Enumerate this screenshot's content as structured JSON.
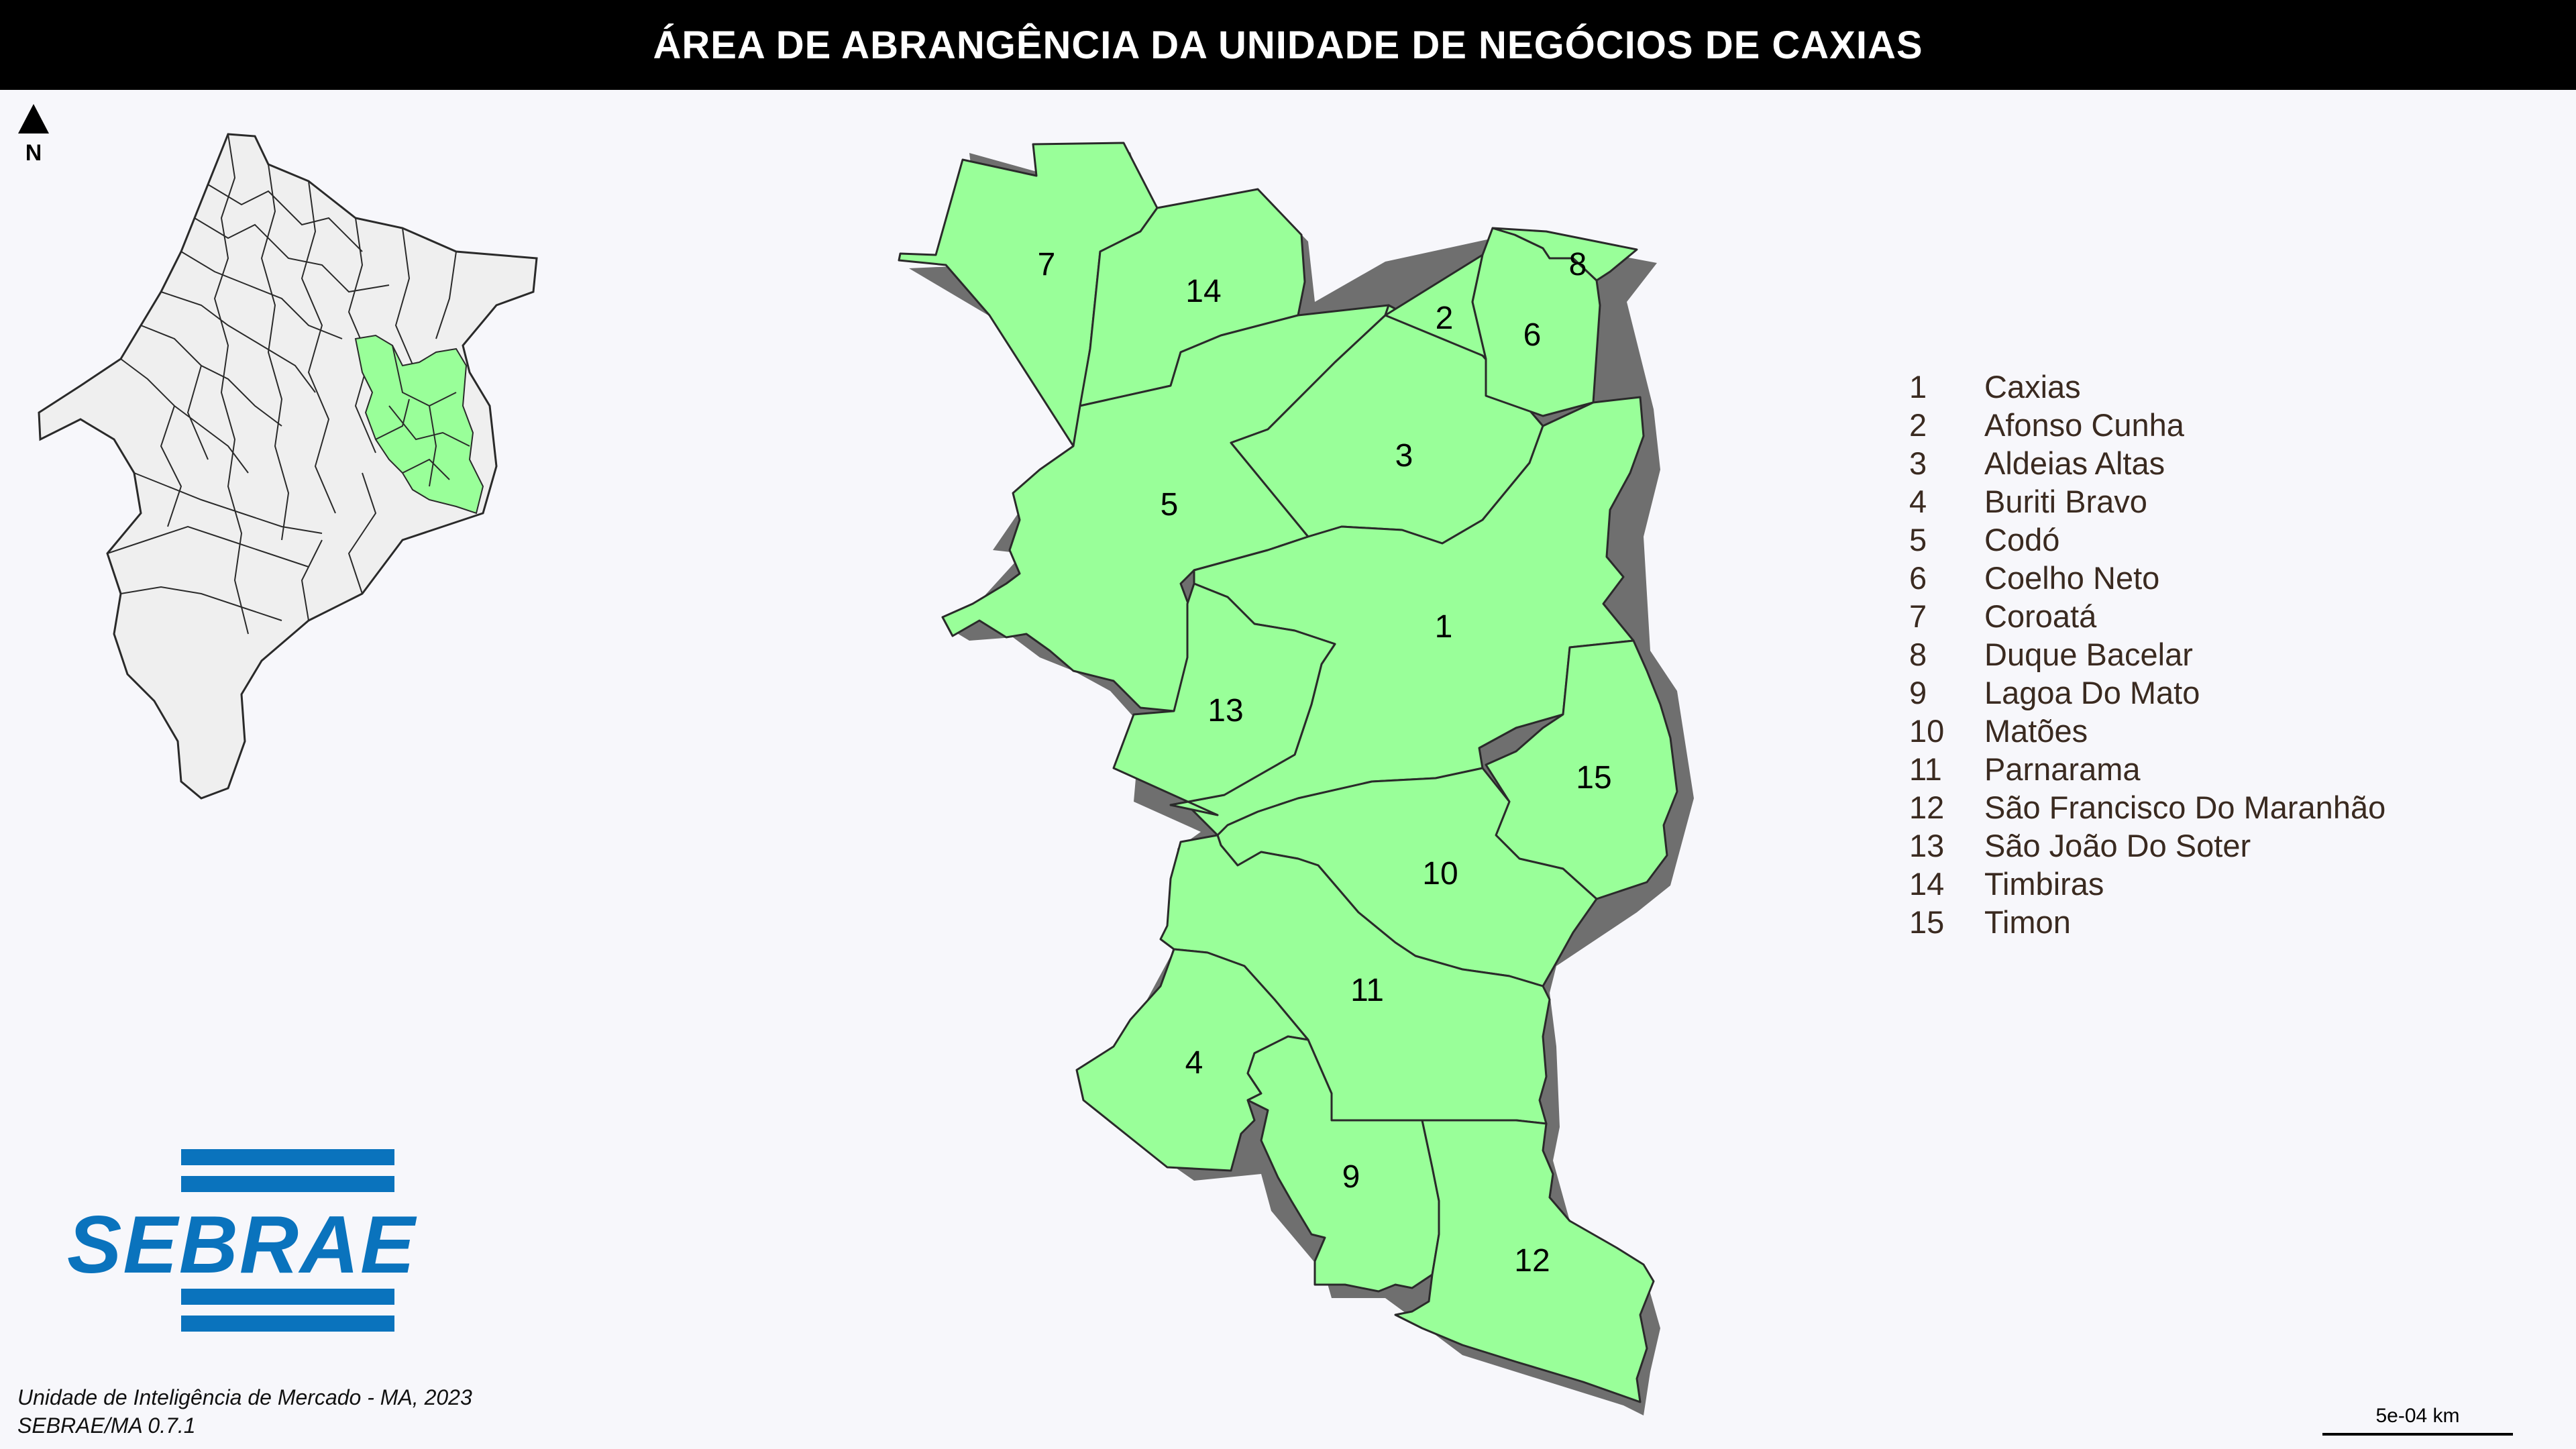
{
  "title": "ÁREA DE ABRANGÊNCIA DA UNIDADE DE NEGÓCIOS DE CAXIAS",
  "north_label": "N",
  "colors": {
    "highlight_fill": "#99ff99",
    "state_fill": "#efefef",
    "border": "#2a2a2a",
    "shadow": "#6f6f6f",
    "brand_blue": "#0a73bd"
  },
  "icons": {
    "north": "north-arrow-icon",
    "logo": "sebrae-logo"
  },
  "regions": [
    {
      "num": "1",
      "name": "Caxias"
    },
    {
      "num": "2",
      "name": "Afonso Cunha"
    },
    {
      "num": "3",
      "name": "Aldeias Altas"
    },
    {
      "num": "4",
      "name": "Buriti Bravo"
    },
    {
      "num": "5",
      "name": "Codó"
    },
    {
      "num": "6",
      "name": "Coelho Neto"
    },
    {
      "num": "7",
      "name": "Coroatá"
    },
    {
      "num": "8",
      "name": "Duque Bacelar"
    },
    {
      "num": "9",
      "name": "Lagoa Do Mato"
    },
    {
      "num": "10",
      "name": "Matões"
    },
    {
      "num": "11",
      "name": "Parnarama"
    },
    {
      "num": "12",
      "name": "São Francisco Do Maranhão"
    },
    {
      "num": "13",
      "name": "São João Do Soter"
    },
    {
      "num": "14",
      "name": "Timbiras"
    },
    {
      "num": "15",
      "name": "Timon"
    }
  ],
  "logo_text": "SEBRAE",
  "credit": {
    "line1": "Unidade de Inteligência de Mercado - MA, 2023",
    "line2": "SEBRAE/MA 0.7.1"
  },
  "scale_label": "5e-04 km"
}
